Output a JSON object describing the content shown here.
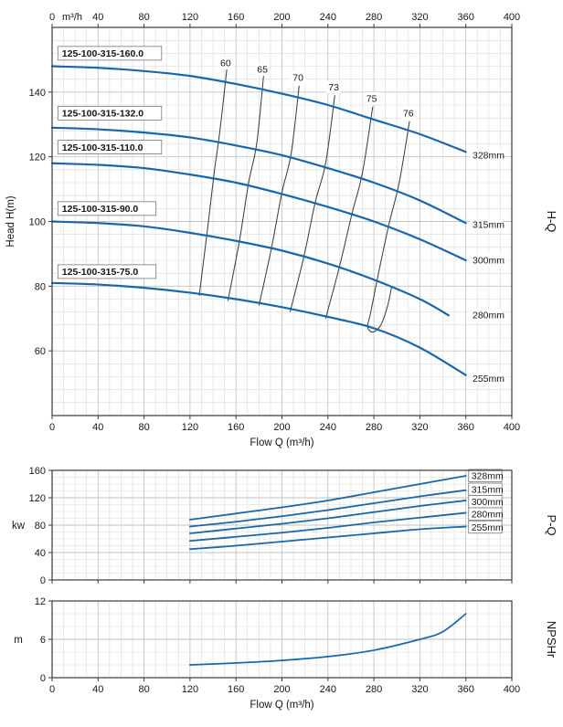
{
  "colors": {
    "curve": "#1767ac",
    "efficiency_line": "#3f3f3f",
    "grid_minor": "#d9d9d9",
    "grid_major": "#c2c2c2",
    "border": "#3a3a3a",
    "text": "#161616",
    "label_box_border": "#777777"
  },
  "chart_data": [
    {
      "type": "line",
      "id": "hq",
      "side_label": "H-Q",
      "xlabel": "Flow Q (m³/h)",
      "x_unit": "m³/h",
      "ylabel": "Head H(m)",
      "xlim": [
        0,
        400
      ],
      "ylim": [
        40,
        160
      ],
      "xticks": [
        0,
        40,
        80,
        120,
        160,
        200,
        240,
        280,
        320,
        360,
        400
      ],
      "yticks": [
        60,
        80,
        100,
        120,
        140
      ],
      "series": [
        {
          "name": "125-100-315-160.0",
          "diameter": "328mm",
          "label_pos": [
            5,
            152
          ],
          "dia_label_pos": [
            365,
            120.5
          ],
          "points": [
            [
              0,
              148
            ],
            [
              40,
              147.5
            ],
            [
              80,
              146.5
            ],
            [
              120,
              145
            ],
            [
              160,
              142.5
            ],
            [
              200,
              139.5
            ],
            [
              240,
              136
            ],
            [
              280,
              131.5
            ],
            [
              320,
              127
            ],
            [
              360,
              121.5
            ]
          ]
        },
        {
          "name": "125-100-315-132.0",
          "diameter": "315mm",
          "label_pos": [
            5,
            133.5
          ],
          "dia_label_pos": [
            365,
            99
          ],
          "points": [
            [
              0,
              129
            ],
            [
              40,
              128.5
            ],
            [
              80,
              127.5
            ],
            [
              120,
              126
            ],
            [
              160,
              123.5
            ],
            [
              200,
              120.5
            ],
            [
              240,
              116.5
            ],
            [
              280,
              112
            ],
            [
              320,
              106.5
            ],
            [
              360,
              99.5
            ]
          ]
        },
        {
          "name": "125-100-315-110.0",
          "diameter": "300mm",
          "label_pos": [
            5,
            123
          ],
          "dia_label_pos": [
            365,
            88
          ],
          "points": [
            [
              0,
              118
            ],
            [
              40,
              117.5
            ],
            [
              80,
              116.5
            ],
            [
              120,
              114.5
            ],
            [
              160,
              112
            ],
            [
              200,
              108.5
            ],
            [
              240,
              104.5
            ],
            [
              280,
              100
            ],
            [
              320,
              94.5
            ],
            [
              360,
              88
            ]
          ]
        },
        {
          "name": "125-100-315-90.0",
          "diameter": "280mm",
          "label_pos": [
            5,
            104
          ],
          "dia_label_pos": [
            365,
            71
          ],
          "points": [
            [
              0,
              100
            ],
            [
              40,
              99.5
            ],
            [
              80,
              98.5
            ],
            [
              120,
              96.5
            ],
            [
              160,
              94
            ],
            [
              200,
              91
            ],
            [
              240,
              87
            ],
            [
              280,
              82
            ],
            [
              320,
              76
            ],
            [
              345,
              71
            ]
          ]
        },
        {
          "name": "125-100-315-75.0",
          "diameter": "255mm",
          "label_pos": [
            5,
            84.5
          ],
          "dia_label_pos": [
            365,
            51.5
          ],
          "points": [
            [
              0,
              81
            ],
            [
              40,
              80.5
            ],
            [
              80,
              79.5
            ],
            [
              120,
              78
            ],
            [
              160,
              76
            ],
            [
              200,
              73.5
            ],
            [
              240,
              70.5
            ],
            [
              280,
              67
            ],
            [
              320,
              61
            ],
            [
              360,
              52.5
            ]
          ]
        }
      ],
      "efficiency_lines": [
        {
          "label": "60",
          "label_pos": [
            151,
            149
          ],
          "points": [
            [
              152,
              147
            ],
            [
              146,
              128
            ],
            [
              141,
              115
            ],
            [
              135,
              97
            ],
            [
              128,
              77
            ]
          ]
        },
        {
          "label": "65",
          "label_pos": [
            183,
            147
          ],
          "points": [
            [
              184,
              145
            ],
            [
              178,
              124
            ],
            [
              171,
              112
            ],
            [
              163,
              94
            ],
            [
              153,
              75.5
            ]
          ]
        },
        {
          "label": "70",
          "label_pos": [
            214,
            144.5
          ],
          "points": [
            [
              215,
              142
            ],
            [
              208,
              121
            ],
            [
              200,
              109
            ],
            [
              191,
              92
            ],
            [
              180,
              74
            ]
          ]
        },
        {
          "label": "73",
          "label_pos": [
            245,
            141.5
          ],
          "points": [
            [
              246,
              139
            ],
            [
              238,
              118
            ],
            [
              229,
              106
            ],
            [
              219,
              89
            ],
            [
              207,
              72
            ]
          ]
        },
        {
          "label": "75",
          "label_pos": [
            278,
            138
          ],
          "points": [
            [
              279,
              135.5
            ],
            [
              270,
              115
            ],
            [
              261,
              102.5
            ],
            [
              250,
              86
            ],
            [
              238,
              70
            ]
          ]
        },
        {
          "label": "76",
          "label_pos": [
            310,
            133.5
          ],
          "points": [
            [
              311,
              131
            ],
            [
              302,
              112
            ],
            [
              293,
              99
            ],
            [
              284,
              84
            ],
            [
              277,
              71.5
            ],
            [
              274.5,
              67.5
            ],
            [
              279,
              65.8
            ],
            [
              286,
              68
            ],
            [
              292,
              74
            ],
            [
              295.5,
              80
            ]
          ]
        }
      ]
    },
    {
      "type": "line",
      "id": "pq",
      "side_label": "P-Q",
      "ylabel": "kw",
      "xlim": [
        0,
        400
      ],
      "ylim": [
        0,
        160
      ],
      "xticks": [
        0,
        40,
        80,
        120,
        160,
        200,
        240,
        280,
        320,
        360,
        400
      ],
      "yticks": [
        0,
        40,
        80,
        120,
        160
      ],
      "series": [
        {
          "diameter": "328mm",
          "dia_label_pos": [
            364,
            152
          ],
          "points": [
            [
              120,
              88
            ],
            [
              160,
              97
            ],
            [
              200,
              106
            ],
            [
              240,
              116
            ],
            [
              280,
              128
            ],
            [
              320,
              140
            ],
            [
              360,
              152
            ]
          ]
        },
        {
          "diameter": "315mm",
          "dia_label_pos": [
            364,
            132
          ],
          "points": [
            [
              120,
              78
            ],
            [
              160,
              85
            ],
            [
              200,
              93
            ],
            [
              240,
              102
            ],
            [
              280,
              112
            ],
            [
              320,
              122
            ],
            [
              360,
              131
            ]
          ]
        },
        {
          "diameter": "300mm",
          "dia_label_pos": [
            364,
            114
          ],
          "points": [
            [
              120,
              68
            ],
            [
              160,
              75
            ],
            [
              200,
              82
            ],
            [
              240,
              90
            ],
            [
              280,
              99
            ],
            [
              320,
              108
            ],
            [
              360,
              116
            ]
          ]
        },
        {
          "diameter": "280mm",
          "dia_label_pos": [
            364,
            96
          ],
          "points": [
            [
              120,
              57
            ],
            [
              160,
              63
            ],
            [
              200,
              69
            ],
            [
              240,
              76
            ],
            [
              280,
              84
            ],
            [
              320,
              91
            ],
            [
              360,
              98
            ]
          ]
        },
        {
          "diameter": "255mm",
          "dia_label_pos": [
            364,
            77
          ],
          "points": [
            [
              120,
              45
            ],
            [
              160,
              50
            ],
            [
              200,
              56
            ],
            [
              240,
              62
            ],
            [
              280,
              68
            ],
            [
              320,
              74
            ],
            [
              360,
              78
            ]
          ]
        }
      ]
    },
    {
      "type": "line",
      "id": "npshr",
      "side_label": "NPSHr",
      "xlabel": "Flow Q (m³/h)",
      "ylabel": "m",
      "xlim": [
        0,
        400
      ],
      "ylim": [
        0,
        12
      ],
      "xticks": [
        0,
        40,
        80,
        120,
        160,
        200,
        240,
        280,
        320,
        360,
        400
      ],
      "yticks": [
        0,
        6,
        12
      ],
      "series": [
        {
          "diameter": "",
          "points": [
            [
              120,
              2
            ],
            [
              160,
              2.3
            ],
            [
              200,
              2.7
            ],
            [
              240,
              3.3
            ],
            [
              280,
              4.3
            ],
            [
              320,
              6
            ],
            [
              340,
              7.2
            ],
            [
              360,
              10
            ]
          ]
        }
      ]
    }
  ]
}
